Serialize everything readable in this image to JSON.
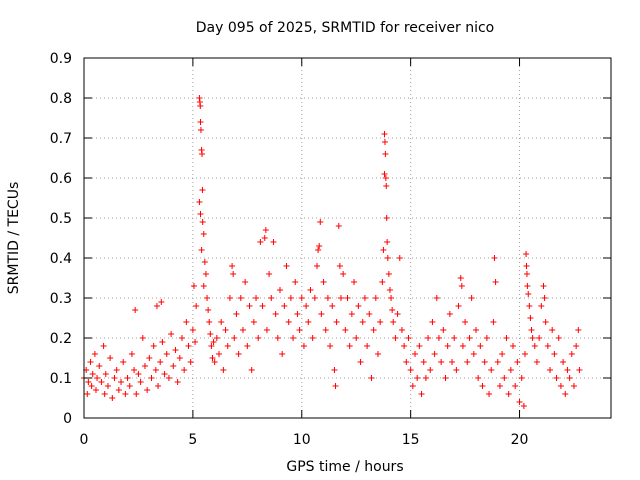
{
  "chart_data": {
    "type": "scatter",
    "title": "Day 095 of 2025, SRMTID for receiver nico",
    "xlabel": "GPS time / hours",
    "ylabel": "SRMTID / TECUs",
    "xlim": [
      0,
      24.2
    ],
    "ylim": [
      0,
      0.9
    ],
    "x_ticks": [
      0,
      5,
      10,
      15,
      20
    ],
    "x_tick_labels": [
      "0",
      "5",
      "10",
      "15",
      "20"
    ],
    "y_ticks": [
      0,
      0.1,
      0.2,
      0.3,
      0.4,
      0.5,
      0.6,
      0.7,
      0.8,
      0.9
    ],
    "y_tick_labels": [
      "0",
      "0.1",
      "0.2",
      "0.3",
      "0.4",
      "0.5",
      "0.6",
      "0.7",
      "0.8",
      "0.9"
    ],
    "grid": true,
    "marker": "+",
    "point_color": "#ff0000",
    "series": [
      {
        "name": "SRMTID",
        "points": [
          [
            0.0,
            0.1
          ],
          [
            0.1,
            0.12
          ],
          [
            0.15,
            0.06
          ],
          [
            0.2,
            0.09
          ],
          [
            0.3,
            0.14
          ],
          [
            0.35,
            0.08
          ],
          [
            0.4,
            0.11
          ],
          [
            0.5,
            0.16
          ],
          [
            0.55,
            0.07
          ],
          [
            0.6,
            0.1
          ],
          [
            0.7,
            0.13
          ],
          [
            0.8,
            0.09
          ],
          [
            0.9,
            0.18
          ],
          [
            0.95,
            0.06
          ],
          [
            1.0,
            0.11
          ],
          [
            1.1,
            0.08
          ],
          [
            1.2,
            0.15
          ],
          [
            1.3,
            0.05
          ],
          [
            1.4,
            0.1
          ],
          [
            1.5,
            0.12
          ],
          [
            1.6,
            0.07
          ],
          [
            1.7,
            0.09
          ],
          [
            1.8,
            0.14
          ],
          [
            1.9,
            0.06
          ],
          [
            2.0,
            0.1
          ],
          [
            2.1,
            0.08
          ],
          [
            2.2,
            0.16
          ],
          [
            2.3,
            0.12
          ],
          [
            2.35,
            0.27
          ],
          [
            2.4,
            0.06
          ],
          [
            2.5,
            0.11
          ],
          [
            2.6,
            0.09
          ],
          [
            2.7,
            0.2
          ],
          [
            2.8,
            0.13
          ],
          [
            2.9,
            0.07
          ],
          [
            3.0,
            0.15
          ],
          [
            3.1,
            0.1
          ],
          [
            3.2,
            0.18
          ],
          [
            3.3,
            0.12
          ],
          [
            3.35,
            0.28
          ],
          [
            3.4,
            0.08
          ],
          [
            3.5,
            0.14
          ],
          [
            3.55,
            0.29
          ],
          [
            3.6,
            0.19
          ],
          [
            3.7,
            0.11
          ],
          [
            3.8,
            0.16
          ],
          [
            3.9,
            0.1
          ],
          [
            4.0,
            0.21
          ],
          [
            4.1,
            0.13
          ],
          [
            4.2,
            0.17
          ],
          [
            4.3,
            0.09
          ],
          [
            4.4,
            0.15
          ],
          [
            4.5,
            0.2
          ],
          [
            4.6,
            0.12
          ],
          [
            4.7,
            0.24
          ],
          [
            4.8,
            0.18
          ],
          [
            4.9,
            0.14
          ],
          [
            5.0,
            0.22
          ],
          [
            5.05,
            0.33
          ],
          [
            5.1,
            0.19
          ],
          [
            5.15,
            0.28
          ],
          [
            5.3,
            0.8
          ],
          [
            5.32,
            0.79
          ],
          [
            5.34,
            0.78
          ],
          [
            5.35,
            0.74
          ],
          [
            5.37,
            0.72
          ],
          [
            5.4,
            0.67
          ],
          [
            5.42,
            0.66
          ],
          [
            5.44,
            0.57
          ],
          [
            5.3,
            0.54
          ],
          [
            5.35,
            0.51
          ],
          [
            5.45,
            0.49
          ],
          [
            5.5,
            0.46
          ],
          [
            5.4,
            0.42
          ],
          [
            5.55,
            0.39
          ],
          [
            5.6,
            0.36
          ],
          [
            5.5,
            0.33
          ],
          [
            5.65,
            0.3
          ],
          [
            5.7,
            0.27
          ],
          [
            5.75,
            0.24
          ],
          [
            5.8,
            0.21
          ],
          [
            5.85,
            0.18
          ],
          [
            5.9,
            0.15
          ],
          [
            5.95,
            0.19
          ],
          [
            6.0,
            0.14
          ],
          [
            6.1,
            0.2
          ],
          [
            6.2,
            0.16
          ],
          [
            6.3,
            0.24
          ],
          [
            6.4,
            0.12
          ],
          [
            6.5,
            0.22
          ],
          [
            6.6,
            0.18
          ],
          [
            6.7,
            0.3
          ],
          [
            6.8,
            0.38
          ],
          [
            6.85,
            0.36
          ],
          [
            6.9,
            0.2
          ],
          [
            7.0,
            0.26
          ],
          [
            7.1,
            0.16
          ],
          [
            7.2,
            0.3
          ],
          [
            7.3,
            0.22
          ],
          [
            7.4,
            0.34
          ],
          [
            7.5,
            0.18
          ],
          [
            7.6,
            0.28
          ],
          [
            7.7,
            0.12
          ],
          [
            7.8,
            0.24
          ],
          [
            7.9,
            0.3
          ],
          [
            8.0,
            0.2
          ],
          [
            8.1,
            0.44
          ],
          [
            8.2,
            0.28
          ],
          [
            8.3,
            0.45
          ],
          [
            8.35,
            0.47
          ],
          [
            8.4,
            0.22
          ],
          [
            8.5,
            0.36
          ],
          [
            8.6,
            0.3
          ],
          [
            8.7,
            0.44
          ],
          [
            8.8,
            0.26
          ],
          [
            8.9,
            0.2
          ],
          [
            9.0,
            0.32
          ],
          [
            9.1,
            0.16
          ],
          [
            9.2,
            0.28
          ],
          [
            9.3,
            0.38
          ],
          [
            9.4,
            0.24
          ],
          [
            9.5,
            0.3
          ],
          [
            9.6,
            0.2
          ],
          [
            9.7,
            0.34
          ],
          [
            9.8,
            0.26
          ],
          [
            9.9,
            0.22
          ],
          [
            10.0,
            0.3
          ],
          [
            10.1,
            0.18
          ],
          [
            10.2,
            0.28
          ],
          [
            10.3,
            0.24
          ],
          [
            10.4,
            0.32
          ],
          [
            10.5,
            0.2
          ],
          [
            10.6,
            0.3
          ],
          [
            10.7,
            0.38
          ],
          [
            10.75,
            0.42
          ],
          [
            10.8,
            0.43
          ],
          [
            10.85,
            0.49
          ],
          [
            10.9,
            0.26
          ],
          [
            11.0,
            0.34
          ],
          [
            11.1,
            0.22
          ],
          [
            11.2,
            0.3
          ],
          [
            11.3,
            0.18
          ],
          [
            11.4,
            0.28
          ],
          [
            11.5,
            0.12
          ],
          [
            11.55,
            0.08
          ],
          [
            11.6,
            0.24
          ],
          [
            11.7,
            0.48
          ],
          [
            11.75,
            0.38
          ],
          [
            11.8,
            0.3
          ],
          [
            11.9,
            0.36
          ],
          [
            12.0,
            0.22
          ],
          [
            12.1,
            0.3
          ],
          [
            12.2,
            0.18
          ],
          [
            12.3,
            0.26
          ],
          [
            12.4,
            0.34
          ],
          [
            12.5,
            0.2
          ],
          [
            12.6,
            0.28
          ],
          [
            12.7,
            0.14
          ],
          [
            12.8,
            0.24
          ],
          [
            12.9,
            0.3
          ],
          [
            13.0,
            0.18
          ],
          [
            13.1,
            0.26
          ],
          [
            13.2,
            0.1
          ],
          [
            13.3,
            0.22
          ],
          [
            13.4,
            0.3
          ],
          [
            13.5,
            0.16
          ],
          [
            13.6,
            0.24
          ],
          [
            13.7,
            0.34
          ],
          [
            13.75,
            0.42
          ],
          [
            13.8,
            0.71
          ],
          [
            13.82,
            0.69
          ],
          [
            13.84,
            0.66
          ],
          [
            13.8,
            0.61
          ],
          [
            13.86,
            0.6
          ],
          [
            13.88,
            0.58
          ],
          [
            13.9,
            0.5
          ],
          [
            13.92,
            0.44
          ],
          [
            13.95,
            0.4
          ],
          [
            14.0,
            0.36
          ],
          [
            14.05,
            0.32
          ],
          [
            14.1,
            0.3
          ],
          [
            14.15,
            0.27
          ],
          [
            14.2,
            0.24
          ],
          [
            14.3,
            0.2
          ],
          [
            14.4,
            0.26
          ],
          [
            14.5,
            0.4
          ],
          [
            14.6,
            0.22
          ],
          [
            14.7,
            0.18
          ],
          [
            14.8,
            0.14
          ],
          [
            14.9,
            0.2
          ],
          [
            15.0,
            0.12
          ],
          [
            15.1,
            0.08
          ],
          [
            15.2,
            0.16
          ],
          [
            15.3,
            0.1
          ],
          [
            15.4,
            0.18
          ],
          [
            15.5,
            0.06
          ],
          [
            15.6,
            0.14
          ],
          [
            15.7,
            0.1
          ],
          [
            15.8,
            0.2
          ],
          [
            15.9,
            0.12
          ],
          [
            16.0,
            0.24
          ],
          [
            16.1,
            0.16
          ],
          [
            16.2,
            0.3
          ],
          [
            16.3,
            0.2
          ],
          [
            16.4,
            0.14
          ],
          [
            16.5,
            0.22
          ],
          [
            16.6,
            0.1
          ],
          [
            16.7,
            0.18
          ],
          [
            16.8,
            0.26
          ],
          [
            16.9,
            0.14
          ],
          [
            17.0,
            0.2
          ],
          [
            17.1,
            0.12
          ],
          [
            17.2,
            0.28
          ],
          [
            17.3,
            0.35
          ],
          [
            17.35,
            0.33
          ],
          [
            17.4,
            0.18
          ],
          [
            17.5,
            0.24
          ],
          [
            17.6,
            0.14
          ],
          [
            17.7,
            0.2
          ],
          [
            17.8,
            0.3
          ],
          [
            17.9,
            0.16
          ],
          [
            18.0,
            0.22
          ],
          [
            18.1,
            0.1
          ],
          [
            18.2,
            0.18
          ],
          [
            18.3,
            0.08
          ],
          [
            18.4,
            0.14
          ],
          [
            18.5,
            0.2
          ],
          [
            18.6,
            0.06
          ],
          [
            18.7,
            0.12
          ],
          [
            18.8,
            0.24
          ],
          [
            18.85,
            0.4
          ],
          [
            18.9,
            0.34
          ],
          [
            19.0,
            0.14
          ],
          [
            19.1,
            0.08
          ],
          [
            19.2,
            0.16
          ],
          [
            19.3,
            0.1
          ],
          [
            19.4,
            0.2
          ],
          [
            19.5,
            0.06
          ],
          [
            19.6,
            0.12
          ],
          [
            19.7,
            0.18
          ],
          [
            19.8,
            0.08
          ],
          [
            19.9,
            0.14
          ],
          [
            20.0,
            0.04
          ],
          [
            20.1,
            0.1
          ],
          [
            20.2,
            0.03
          ],
          [
            20.25,
            0.16
          ],
          [
            20.3,
            0.41
          ],
          [
            20.32,
            0.38
          ],
          [
            20.34,
            0.36
          ],
          [
            20.36,
            0.33
          ],
          [
            20.4,
            0.31
          ],
          [
            20.45,
            0.28
          ],
          [
            20.5,
            0.25
          ],
          [
            20.55,
            0.22
          ],
          [
            20.6,
            0.2
          ],
          [
            20.7,
            0.18
          ],
          [
            20.8,
            0.14
          ],
          [
            20.9,
            0.2
          ],
          [
            21.0,
            0.28
          ],
          [
            21.1,
            0.33
          ],
          [
            21.15,
            0.3
          ],
          [
            21.2,
            0.24
          ],
          [
            21.3,
            0.18
          ],
          [
            21.4,
            0.12
          ],
          [
            21.5,
            0.22
          ],
          [
            21.6,
            0.16
          ],
          [
            21.7,
            0.1
          ],
          [
            21.8,
            0.2
          ],
          [
            21.9,
            0.08
          ],
          [
            22.0,
            0.14
          ],
          [
            22.1,
            0.06
          ],
          [
            22.2,
            0.12
          ],
          [
            22.3,
            0.1
          ],
          [
            22.4,
            0.16
          ],
          [
            22.5,
            0.08
          ],
          [
            22.6,
            0.18
          ],
          [
            22.7,
            0.22
          ],
          [
            22.75,
            0.12
          ]
        ]
      }
    ]
  }
}
